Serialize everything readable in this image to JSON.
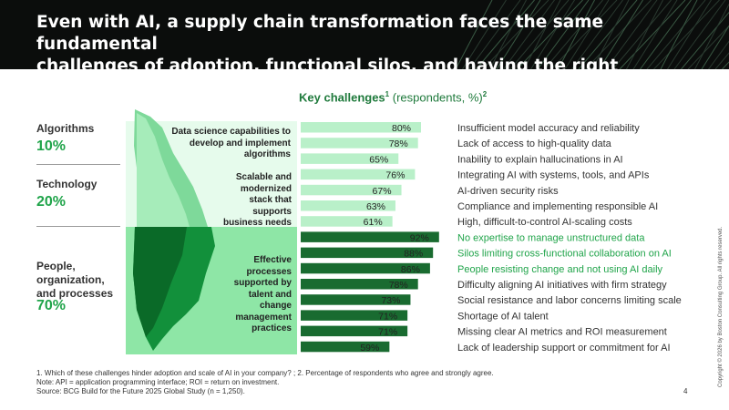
{
  "header": {
    "title_line1": "Even with AI, a supply chain transformation faces the same fundamental",
    "title_line2": "challenges of adoption, functional silos, and having the right expertise"
  },
  "chart_data": {
    "type": "bar",
    "orientation": "horizontal",
    "title": "Key challenges",
    "title_sup": "1",
    "title_unit": "(respondents, %)",
    "title_unit_sup": "2",
    "categories": [
      "Insufficient model accuracy and reliability",
      "Lack of access to high-quality data",
      "Inability to explain hallucinations in AI",
      "Integrating AI with systems, tools, and APIs",
      "AI-driven security risks",
      "Compliance and implementing responsible AI",
      "High, difficult-to-control AI-scaling costs",
      "No expertise to manage unstructured data",
      "Silos limiting cross-functional collaboration on AI",
      "People resisting change and not using AI daily",
      "Difficulty aligning AI initiatives with firm strategy",
      "Social resistance and labor concerns limiting scale",
      "Shortage of AI talent",
      "Missing clear AI metrics and ROI measurement",
      "Lack of leadership support or commitment for AI"
    ],
    "values": [
      80,
      78,
      65,
      76,
      67,
      63,
      61,
      92,
      88,
      86,
      78,
      73,
      71,
      71,
      59
    ],
    "value_labels": [
      "80%",
      "78%",
      "65%",
      "76%",
      "67%",
      "63%",
      "61%",
      "92%",
      "88%",
      "86%",
      "78%",
      "73%",
      "71%",
      "71%",
      "59%"
    ],
    "groups": [
      "algorithms",
      "algorithms",
      "algorithms",
      "technology",
      "technology",
      "technology",
      "technology",
      "people",
      "people",
      "people",
      "people",
      "people",
      "people",
      "people",
      "people"
    ],
    "highlighted": [
      false,
      false,
      false,
      false,
      false,
      false,
      false,
      true,
      true,
      true,
      false,
      false,
      false,
      false,
      false
    ],
    "xlim": [
      0,
      100
    ],
    "colors": {
      "light": "#b9f0c9",
      "dark": "#196b30",
      "highlight_text": "#20a44a"
    }
  },
  "categories_panel": [
    {
      "name": "Algorithms",
      "pct": "10%",
      "iceberg_label": "Data science capabilities to develop and implement algorithms"
    },
    {
      "name": "Technology",
      "pct": "20%",
      "iceberg_label": "Scalable and modernized stack that supports business needs"
    },
    {
      "name": "People, organization, and processes",
      "pct": "70%",
      "iceberg_label": "Effective processes supported by talent and change management practices"
    }
  ],
  "footnotes": {
    "line1": "1. Which of these challenges hinder adoption and scale of AI in your company? ; 2. Percentage of respondents who agree and strongly agree.",
    "line2": "Note: API = application programming interface; ROI = return on investment.",
    "line3": "Source: BCG Build for the Future 2025 Global Study (n = 1,250)."
  },
  "page_number": "4",
  "copyright": "Copyright © 2026 by Boston Consulting Group. All rights reserved."
}
